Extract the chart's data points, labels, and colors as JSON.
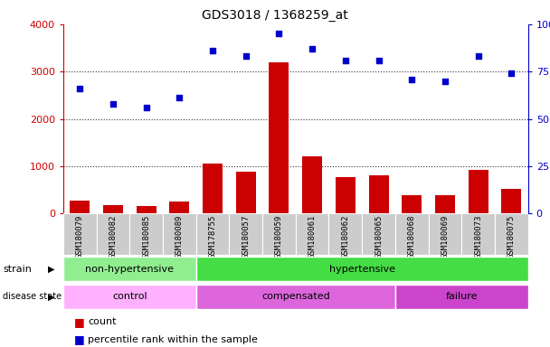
{
  "title": "GDS3018 / 1368259_at",
  "samples": [
    "GSM180079",
    "GSM180082",
    "GSM180085",
    "GSM180089",
    "GSM178755",
    "GSM180057",
    "GSM180059",
    "GSM180061",
    "GSM180062",
    "GSM180065",
    "GSM180068",
    "GSM180069",
    "GSM180073",
    "GSM180075"
  ],
  "counts": [
    270,
    175,
    150,
    260,
    1060,
    880,
    3200,
    1210,
    770,
    810,
    380,
    380,
    920,
    520
  ],
  "percentiles": [
    66,
    58,
    56,
    61,
    86,
    83,
    95,
    87,
    81,
    81,
    71,
    70,
    83,
    74
  ],
  "ylim_left": [
    0,
    4000
  ],
  "ylim_right": [
    0,
    100
  ],
  "yticks_left": [
    0,
    1000,
    2000,
    3000,
    4000
  ],
  "yticks_right": [
    0,
    25,
    50,
    75,
    100
  ],
  "strain_groups": [
    {
      "label": "non-hypertensive",
      "start": 0,
      "end": 4,
      "color": "#90EE90"
    },
    {
      "label": "hypertensive",
      "start": 4,
      "end": 14,
      "color": "#44DD44"
    }
  ],
  "disease_groups": [
    {
      "label": "control",
      "start": 0,
      "end": 4,
      "color": "#FFB0FF"
    },
    {
      "label": "compensated",
      "start": 4,
      "end": 10,
      "color": "#DD66DD"
    },
    {
      "label": "failure",
      "start": 10,
      "end": 14,
      "color": "#CC44CC"
    }
  ],
  "bar_color": "#CC0000",
  "dot_color": "#0000CC",
  "left_axis_color": "#CC0000",
  "right_axis_color": "#0000CC",
  "bg_color": "#FFFFFF",
  "tick_area_color": "#CCCCCC",
  "grid_line_color": "#333333"
}
